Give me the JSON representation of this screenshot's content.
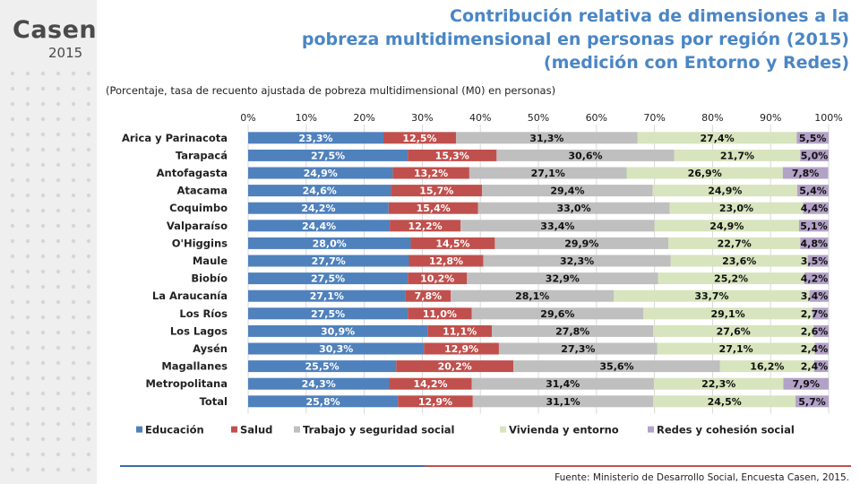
{
  "logo": {
    "word": "Casen",
    "year": "2015"
  },
  "title_lines": [
    "Contribución relativa de dimensiones a la",
    "pobreza multidimensional en personas por región (2015)",
    "(medición con Entorno y Redes)"
  ],
  "subtitle": "(Porcentaje, tasa de recuento ajustada de pobreza multidimensional (M0) en personas)",
  "source": "Fuente: Ministerio de Desarrollo Social, Encuesta Casen, 2015.",
  "colors": {
    "title": "#4a86c5",
    "rule_blue": "#3b6ca8",
    "rule_red": "#c0504d"
  },
  "chart_data": {
    "type": "bar",
    "orientation": "horizontal",
    "stacked": true,
    "percent_stacked": true,
    "xlim": [
      0,
      100
    ],
    "x_ticks": [
      "0%",
      "10%",
      "20%",
      "30%",
      "40%",
      "50%",
      "60%",
      "70%",
      "80%",
      "90%",
      "100%"
    ],
    "grid": true,
    "legend_position": "bottom",
    "categories": [
      "Arica y Parinacota",
      "Tarapacá",
      "Antofagasta",
      "Atacama",
      "Coquimbo",
      "Valparaíso",
      "O'Higgins",
      "Maule",
      "Biobío",
      "La Araucanía",
      "Los Ríos",
      "Los Lagos",
      "Aysén",
      "Magallanes",
      "Metropolitana",
      "Total"
    ],
    "series": [
      {
        "name": "Educación",
        "color": "#4f81bd",
        "values": [
          23.3,
          27.5,
          24.9,
          24.6,
          24.2,
          24.4,
          28.0,
          27.7,
          27.5,
          27.1,
          27.5,
          30.9,
          30.3,
          25.5,
          24.3,
          25.8
        ],
        "labels": [
          "23,3%",
          "27,5%",
          "24,9%",
          "24,6%",
          "24,2%",
          "24,4%",
          "28,0%",
          "27,7%",
          "27,5%",
          "27,1%",
          "27,5%",
          "30,9%",
          "30,3%",
          "25,5%",
          "24,3%",
          "25,8%"
        ]
      },
      {
        "name": "Salud",
        "color": "#c0504d",
        "values": [
          12.5,
          15.3,
          13.2,
          15.7,
          15.4,
          12.2,
          14.5,
          12.8,
          10.2,
          7.8,
          11.0,
          11.1,
          12.9,
          20.2,
          14.2,
          12.9
        ],
        "labels": [
          "12,5%",
          "15,3%",
          "13,2%",
          "15,7%",
          "15,4%",
          "12,2%",
          "14,5%",
          "12,8%",
          "10,2%",
          "7,8%",
          "11,0%",
          "11,1%",
          "12,9%",
          "20,2%",
          "14,2%",
          "12,9%"
        ]
      },
      {
        "name": "Trabajo y seguridad social",
        "color": "#bfbfbf",
        "values": [
          31.3,
          30.6,
          27.1,
          29.4,
          33.0,
          33.4,
          29.9,
          32.3,
          32.9,
          28.1,
          29.6,
          27.8,
          27.3,
          35.6,
          31.4,
          31.1
        ],
        "labels": [
          "31,3%",
          "30,6%",
          "27,1%",
          "29,4%",
          "33,0%",
          "33,4%",
          "29,9%",
          "32,3%",
          "32,9%",
          "28,1%",
          "29,6%",
          "27,8%",
          "27,3%",
          "35,6%",
          "31,4%",
          "31,1%"
        ]
      },
      {
        "name": "Vivienda y entorno",
        "color": "#d7e4bd",
        "values": [
          27.4,
          21.7,
          26.9,
          24.9,
          23.0,
          24.9,
          22.7,
          23.6,
          25.2,
          33.7,
          29.1,
          27.6,
          27.1,
          16.2,
          22.3,
          24.5
        ],
        "labels": [
          "27,4%",
          "21,7%",
          "26,9%",
          "24,9%",
          "23,0%",
          "24,9%",
          "22,7%",
          "23,6%",
          "25,2%",
          "33,7%",
          "29,1%",
          "27,6%",
          "27,1%",
          "16,2%",
          "22,3%",
          "24,5%"
        ]
      },
      {
        "name": "Redes y cohesión social",
        "color": "#b3a2c7",
        "values": [
          5.5,
          5.0,
          7.8,
          5.4,
          4.4,
          5.1,
          4.8,
          3.5,
          4.2,
          3.4,
          2.7,
          2.6,
          2.4,
          2.4,
          7.9,
          5.7
        ],
        "labels": [
          "5,5%",
          "5,0%",
          "7,8%",
          "5,4%",
          "4,4%",
          "5,1%",
          "4,8%",
          "3,5%",
          "4,2%",
          "3,4%",
          "2,7%",
          "2,6%",
          "2,4%",
          "2,4%",
          "7,9%",
          "5,7%"
        ]
      }
    ]
  }
}
